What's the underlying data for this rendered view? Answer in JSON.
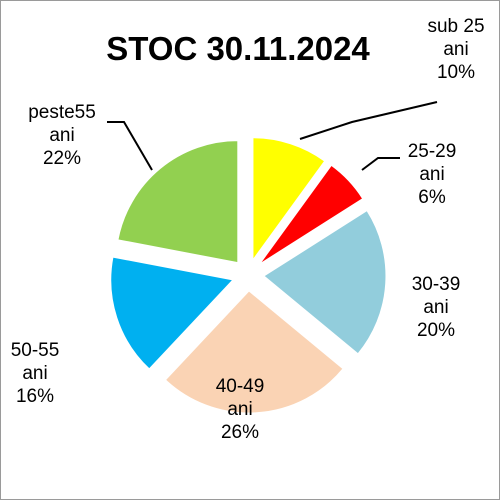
{
  "chart_data": {
    "type": "pie",
    "title": "STOC 30.11.2024",
    "categories": [
      "sub 25 ani",
      "25-29 ani",
      "30-39 ani",
      "40-49 ani",
      "50-55 ani",
      "peste55 ani"
    ],
    "values": [
      10,
      6,
      20,
      26,
      16,
      22
    ],
    "value_labels": [
      "10%",
      "6%",
      "20%",
      "26%",
      "16%",
      "22%"
    ],
    "slices": [
      {
        "name_lines": [
          "sub 25",
          "ani"
        ],
        "percent": "10%",
        "value": 10,
        "color": "#FFFF00"
      },
      {
        "name_lines": [
          "25-29",
          "ani"
        ],
        "percent": "6%",
        "value": 6,
        "color": "#FF0000"
      },
      {
        "name_lines": [
          "30-39",
          "ani"
        ],
        "percent": "20%",
        "value": 20,
        "color": "#92CDDC"
      },
      {
        "name_lines": [
          "40-49",
          "ani"
        ],
        "percent": "26%",
        "value": 26,
        "color": "#FAD3B4"
      },
      {
        "name_lines": [
          "50-55",
          "ani"
        ],
        "percent": "16%",
        "value": 16,
        "color": "#00B0F0"
      },
      {
        "name_lines": [
          "peste55",
          "ani"
        ],
        "percent": "22%",
        "value": 22,
        "color": "#92D050"
      }
    ],
    "exploded": true,
    "legend": "none"
  }
}
